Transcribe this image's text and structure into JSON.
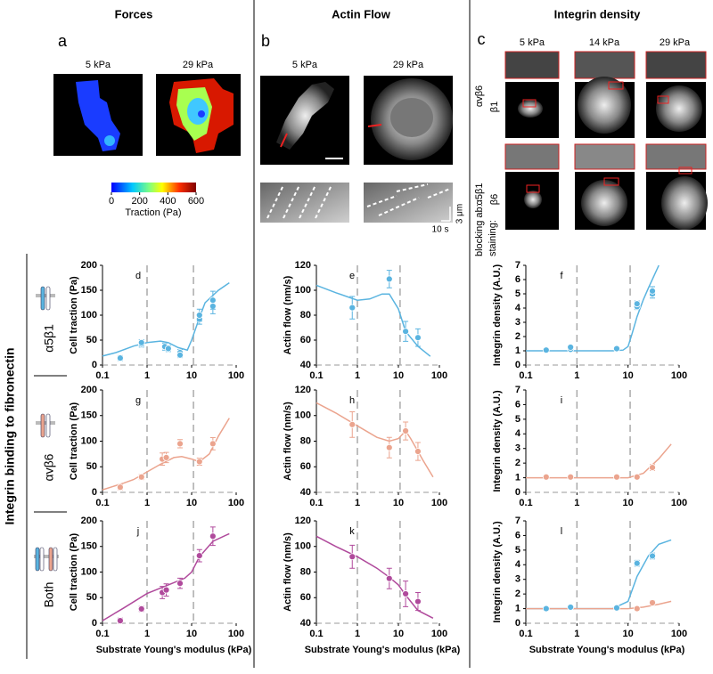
{
  "headers": [
    "Forces",
    "Actin Flow",
    "Integrin density"
  ],
  "panel_a": {
    "label": "a",
    "conditions": [
      "5 kPa",
      "29 kPa"
    ],
    "colorbar": {
      "lim": [
        0,
        600
      ],
      "ticks": [
        0,
        200,
        400,
        600
      ],
      "label": "Traction (Pa)"
    }
  },
  "panel_b": {
    "label": "b",
    "conditions": [
      "5 kPa",
      "29 kPa"
    ],
    "scale_space": "3 μm",
    "scale_time": "10 s"
  },
  "panel_c": {
    "label": "c",
    "conditions": [
      "5 kPa",
      "14 kPa",
      "29 kPa"
    ],
    "blocking": [
      "αvβ6",
      "α5β1"
    ],
    "staining": [
      "β1",
      "β6"
    ],
    "blocking_label": "blocking ab:",
    "staining_label": "staining:"
  },
  "rows": {
    "title": "Integrin binding to fibronectin",
    "labels": [
      "α5β1",
      "αvβ6",
      "Both"
    ]
  },
  "chart_data": [
    {
      "type": "line",
      "label": "d",
      "ylabel": "Cell traction (Pa)",
      "xscale": "log",
      "xlim": [
        0.1,
        100
      ],
      "xticks": [
        0.1,
        1,
        10,
        100
      ],
      "ylim": [
        0,
        200
      ],
      "yticks": [
        0,
        50,
        100,
        150,
        200
      ],
      "vlines": [
        1,
        11
      ],
      "series": [
        {
          "mode": "line",
          "color": "#5ab4e0",
          "x": [
            0.1,
            0.2,
            0.5,
            1,
            2,
            3,
            5,
            8,
            10,
            15,
            20,
            40,
            70
          ],
          "values": [
            18,
            25,
            38,
            45,
            48,
            45,
            35,
            30,
            50,
            95,
            125,
            150,
            165
          ]
        },
        {
          "mode": "markers",
          "color": "#5ab4e0",
          "x": [
            0.25,
            0.75,
            0.75,
            2.5,
            3,
            5.5,
            5.5,
            15,
            15,
            30,
            30
          ],
          "values": [
            14,
            42,
            45,
            37,
            33,
            25,
            20,
            92,
            100,
            118,
            130
          ],
          "errors": [
            5,
            6,
            6,
            7,
            6,
            6,
            5,
            10,
            12,
            15,
            18
          ]
        }
      ]
    },
    {
      "type": "line",
      "label": "e",
      "ylabel": "Actin flow (nm/s)",
      "xscale": "log",
      "xlim": [
        0.1,
        100
      ],
      "xticks": [
        0.1,
        1,
        10,
        100
      ],
      "ylim": [
        40,
        120
      ],
      "yticks": [
        40,
        60,
        80,
        100,
        120
      ],
      "vlines": [
        1,
        11
      ],
      "series": [
        {
          "mode": "line",
          "color": "#5ab4e0",
          "x": [
            0.1,
            0.3,
            1,
            2,
            4,
            6,
            10,
            15,
            30,
            60
          ],
          "values": [
            104,
            98,
            92,
            93,
            97,
            97,
            85,
            67,
            55,
            47
          ]
        },
        {
          "mode": "markers",
          "color": "#5ab4e0",
          "x": [
            0.75,
            6,
            15,
            30
          ],
          "values": [
            86,
            109,
            67,
            62
          ],
          "errors": [
            9,
            7,
            8,
            7
          ]
        }
      ]
    },
    {
      "type": "line",
      "label": "f",
      "ylabel": "Integrin density (A.U.)",
      "xscale": "log",
      "xlim": [
        0.1,
        100
      ],
      "xticks": [
        0.1,
        1,
        10,
        100
      ],
      "ylim": [
        0,
        7
      ],
      "yticks": [
        0,
        1,
        2,
        3,
        4,
        5,
        6,
        7
      ],
      "vlines": [
        1,
        11
      ],
      "series": [
        {
          "mode": "line",
          "color": "#5ab4e0",
          "x": [
            0.1,
            1,
            5,
            8,
            10,
            12,
            15,
            20,
            25,
            40
          ],
          "values": [
            1,
            1,
            1,
            1.05,
            1.3,
            2.2,
            3.4,
            4.6,
            5.4,
            7
          ]
        },
        {
          "mode": "markers",
          "color": "#5ab4e0",
          "x": [
            0.25,
            0.75,
            0.75,
            6,
            15,
            15,
            30,
            30
          ],
          "values": [
            1.05,
            1.1,
            1.25,
            1.15,
            4.1,
            4.3,
            5.0,
            5.2
          ],
          "errors": [
            0.1,
            0.1,
            0.1,
            0.1,
            0.2,
            0.2,
            0.3,
            0.3
          ]
        }
      ]
    },
    {
      "type": "line",
      "label": "g",
      "ylabel": "Cell traction (Pa)",
      "xscale": "log",
      "xlim": [
        0.1,
        100
      ],
      "xticks": [
        0.1,
        1,
        10,
        100
      ],
      "ylim": [
        0,
        200
      ],
      "yticks": [
        0,
        50,
        100,
        150,
        200
      ],
      "vlines": [
        1,
        11
      ],
      "series": [
        {
          "mode": "line",
          "color": "#eba48e",
          "x": [
            0.1,
            0.3,
            0.5,
            1,
            2,
            4,
            6,
            10,
            15,
            25,
            40,
            70
          ],
          "values": [
            5,
            18,
            25,
            40,
            55,
            68,
            70,
            65,
            60,
            75,
            110,
            145
          ]
        },
        {
          "mode": "markers",
          "color": "#eba48e",
          "x": [
            0.25,
            0.75,
            2.2,
            2.7,
            5.5,
            15,
            30
          ],
          "values": [
            10,
            30,
            65,
            68,
            95,
            60,
            95
          ],
          "errors": [
            5,
            5,
            12,
            10,
            8,
            7,
            12
          ]
        }
      ]
    },
    {
      "type": "line",
      "label": "h",
      "ylabel": "Actin flow (nm/s)",
      "xscale": "log",
      "xlim": [
        0.1,
        100
      ],
      "xticks": [
        0.1,
        1,
        10,
        100
      ],
      "ylim": [
        40,
        120
      ],
      "yticks": [
        40,
        60,
        80,
        100,
        120
      ],
      "vlines": [
        1,
        11
      ],
      "series": [
        {
          "mode": "line",
          "color": "#eba48e",
          "x": [
            0.1,
            0.3,
            1,
            3,
            6,
            10,
            15,
            20,
            40,
            70
          ],
          "values": [
            110,
            102,
            92,
            83,
            80,
            82,
            88,
            82,
            65,
            52
          ]
        },
        {
          "mode": "markers",
          "color": "#eba48e",
          "x": [
            0.75,
            6,
            15,
            30
          ],
          "values": [
            93,
            75,
            88,
            72
          ],
          "errors": [
            10,
            8,
            7,
            7
          ]
        }
      ]
    },
    {
      "type": "line",
      "label": "i",
      "ylabel": "Integrin density (A.U.)",
      "xscale": "log",
      "xlim": [
        0.1,
        100
      ],
      "xticks": [
        0.1,
        1,
        10,
        100
      ],
      "ylim": [
        0,
        7
      ],
      "yticks": [
        0,
        1,
        2,
        3,
        4,
        5,
        6,
        7
      ],
      "vlines": [
        1,
        11
      ],
      "series": [
        {
          "mode": "line",
          "color": "#eba48e",
          "x": [
            0.1,
            10,
            20,
            40,
            70
          ],
          "values": [
            1,
            1,
            1.3,
            2.3,
            3.3
          ]
        },
        {
          "mode": "markers",
          "color": "#eba48e",
          "x": [
            0.25,
            0.75,
            6,
            15,
            30
          ],
          "values": [
            1.05,
            1.05,
            1.05,
            1.05,
            1.7
          ],
          "errors": [
            0.1,
            0.1,
            0.1,
            0.1,
            0.2
          ]
        }
      ]
    },
    {
      "type": "line",
      "label": "j",
      "ylabel": "Cell traction (Pa)",
      "xlabel": "Substrate Young's modulus (kPa)",
      "xscale": "log",
      "xlim": [
        0.1,
        100
      ],
      "xticks": [
        0.1,
        1,
        10,
        100
      ],
      "ylim": [
        0,
        200
      ],
      "yticks": [
        0,
        50,
        100,
        150,
        200
      ],
      "vlines": [
        1,
        11
      ],
      "series": [
        {
          "mode": "line",
          "color": "#b04a9c",
          "x": [
            0.1,
            0.3,
            1,
            3,
            7,
            10,
            15,
            30,
            70
          ],
          "values": [
            5,
            30,
            58,
            75,
            88,
            100,
            130,
            160,
            175
          ]
        },
        {
          "mode": "markers",
          "color": "#b04a9c",
          "x": [
            0.25,
            0.75,
            2.2,
            2.7,
            5.5,
            15,
            30
          ],
          "values": [
            5,
            28,
            60,
            65,
            78,
            132,
            170
          ],
          "errors": [
            5,
            5,
            12,
            12,
            10,
            12,
            18
          ]
        }
      ]
    },
    {
      "type": "line",
      "label": "k",
      "ylabel": "Actin flow (nm/s)",
      "xlabel": "Substrate Young's modulus (kPa)",
      "xscale": "log",
      "xlim": [
        0.1,
        100
      ],
      "xticks": [
        0.1,
        1,
        10,
        100
      ],
      "ylim": [
        40,
        120
      ],
      "yticks": [
        40,
        60,
        80,
        100,
        120
      ],
      "vlines": [
        1,
        11
      ],
      "series": [
        {
          "mode": "line",
          "color": "#b04a9c",
          "x": [
            0.1,
            0.3,
            1,
            3,
            6,
            10,
            15,
            30,
            70
          ],
          "values": [
            108,
            100,
            92,
            83,
            76,
            70,
            62,
            50,
            44
          ]
        },
        {
          "mode": "markers",
          "color": "#b04a9c",
          "x": [
            0.75,
            6,
            15,
            30
          ],
          "values": [
            92,
            75,
            63,
            57
          ],
          "errors": [
            9,
            8,
            10,
            7
          ]
        }
      ]
    },
    {
      "type": "line",
      "label": "l",
      "ylabel": "Integrin density (A.U.)",
      "xlabel": "Substrate Young's modulus (kPa)",
      "xscale": "log",
      "xlim": [
        0.1,
        100
      ],
      "xticks": [
        0.1,
        1,
        10,
        100
      ],
      "ylim": [
        0,
        7
      ],
      "yticks": [
        0,
        1,
        2,
        3,
        4,
        5,
        6,
        7
      ],
      "vlines": [
        1,
        11
      ],
      "series": [
        {
          "mode": "line",
          "color": "#5ab4e0",
          "x": [
            0.1,
            5,
            10,
            15,
            25,
            40,
            70
          ],
          "values": [
            1,
            1,
            1.5,
            3.2,
            4.6,
            5.4,
            5.7
          ]
        },
        {
          "mode": "line",
          "color": "#eba48e",
          "x": [
            0.1,
            10,
            20,
            40,
            70
          ],
          "values": [
            1,
            1,
            1.1,
            1.3,
            1.5
          ]
        },
        {
          "mode": "markers",
          "color": "#5ab4e0",
          "x": [
            0.25,
            0.75,
            6,
            15,
            30
          ],
          "values": [
            1.0,
            1.1,
            1.05,
            4.1,
            4.6
          ],
          "errors": [
            0.1,
            0.1,
            0.1,
            0.2,
            0.2
          ]
        },
        {
          "mode": "markers",
          "color": "#eba48e",
          "x": [
            15,
            30
          ],
          "values": [
            1.0,
            1.4
          ],
          "errors": [
            0.1,
            0.15
          ]
        }
      ]
    }
  ]
}
